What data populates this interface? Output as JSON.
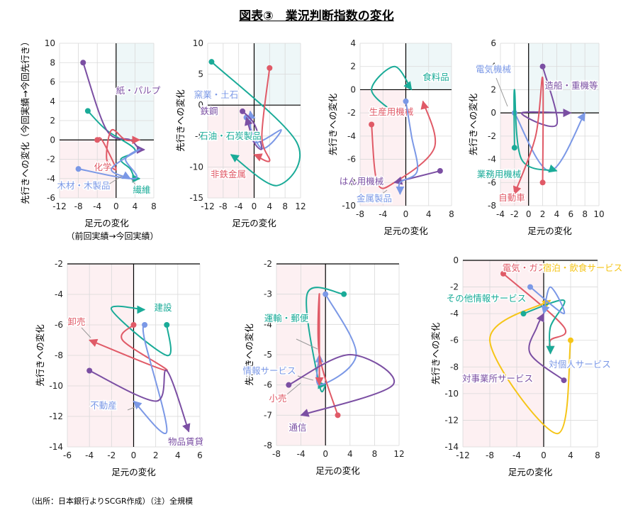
{
  "title": "図表③　業況判断指数の変化",
  "source": "（出所：日本銀行よりSCGR作成）（注）全規模",
  "colors": {
    "teal": "#1aab98",
    "purple": "#7b4fa3",
    "red": "#e05a67",
    "blue": "#7b98e6",
    "yellow": "#f5c518",
    "axis": "#000000",
    "grid": "#d9d9d9"
  },
  "chart_data": [
    {
      "type": "line",
      "xlabel": "足元の変化",
      "ylabel": "先行きへの変化（今回実績→今回先行き）",
      "note": "（前回実績→今回実績）",
      "xlim": [
        -12,
        8
      ],
      "ylim": [
        -6,
        10
      ],
      "xticks": [
        -12,
        -8,
        -4,
        0,
        4,
        8
      ],
      "yticks": [
        -6,
        -4,
        -2,
        0,
        2,
        4,
        6,
        8,
        10
      ],
      "series": [
        {
          "name": "繊維",
          "color": "teal",
          "points": [
            [
              -6,
              3
            ],
            [
              -2,
              1
            ],
            [
              4,
              -1
            ],
            [
              1,
              -2
            ],
            [
              3,
              -3
            ],
            [
              4,
              -4
            ],
            [
              5,
              -4
            ]
          ]
        },
        {
          "name": "紙・パルプ",
          "color": "purple",
          "points": [
            [
              -7,
              8
            ],
            [
              -2,
              1
            ],
            [
              3,
              0
            ],
            [
              5,
              -1
            ],
            [
              6,
              -1
            ]
          ]
        },
        {
          "name": "化学",
          "color": "red",
          "points": [
            [
              -4,
              0
            ],
            [
              -3,
              0
            ],
            [
              0,
              -3
            ],
            [
              -2,
              -2
            ],
            [
              -1,
              1
            ],
            [
              2,
              0
            ],
            [
              5,
              0
            ]
          ]
        },
        {
          "name": "木材・木製品",
          "color": "blue",
          "points": [
            [
              -8,
              -3
            ],
            [
              4,
              -4
            ],
            [
              2,
              -2
            ],
            [
              5,
              -1
            ],
            [
              -1,
              -3
            ],
            [
              3,
              -4
            ]
          ]
        }
      ]
    },
    {
      "type": "line",
      "xlabel": "足元の変化",
      "ylabel": "先行きへの変化",
      "xlim": [
        -12,
        12
      ],
      "ylim": [
        -15,
        10
      ],
      "xticks": [
        -12,
        -8,
        -4,
        0,
        4,
        8,
        12
      ],
      "yticks": [
        -15,
        -10,
        -5,
        0,
        5,
        10
      ],
      "series": [
        {
          "name": "窯業・土石",
          "color": "blue",
          "points": [
            [
              -2,
              -2
            ],
            [
              2,
              -7
            ],
            [
              7,
              -4
            ],
            [
              0,
              -6
            ],
            [
              -1,
              -1
            ]
          ]
        },
        {
          "name": "鉄鋼",
          "color": "purple",
          "points": [
            [
              -3,
              -1
            ],
            [
              0,
              -3
            ],
            [
              2,
              -7
            ],
            [
              0,
              -6
            ],
            [
              -2,
              -2
            ]
          ]
        },
        {
          "name": "石油・石炭製品",
          "color": "teal",
          "points": [
            [
              -11,
              7
            ],
            [
              11,
              -6
            ],
            [
              6,
              -13
            ],
            [
              -6,
              -8
            ]
          ]
        },
        {
          "name": "非鉄金属",
          "color": "red",
          "points": [
            [
              4,
              6
            ],
            [
              2,
              -5
            ],
            [
              4,
              -9
            ],
            [
              0,
              -8
            ]
          ]
        }
      ]
    },
    {
      "type": "line",
      "xlabel": "足元の変化",
      "ylabel": "先行きへの変化",
      "xlim": [
        -8,
        8
      ],
      "ylim": [
        -10,
        4
      ],
      "xticks": [
        -8,
        -4,
        0,
        4,
        8
      ],
      "yticks": [
        -10,
        -8,
        -6,
        -4,
        -2,
        0,
        2,
        4
      ],
      "series": [
        {
          "name": "食料品",
          "color": "teal",
          "points": [
            [
              -2,
              -2
            ],
            [
              -6,
              0
            ],
            [
              -2,
              2
            ],
            [
              1,
              0
            ]
          ]
        },
        {
          "name": "生産用機械",
          "color": "red",
          "points": [
            [
              -6,
              -3
            ],
            [
              -5,
              -8
            ],
            [
              -2,
              -8
            ],
            [
              5,
              -5
            ],
            [
              3,
              -1
            ]
          ]
        },
        {
          "name": "はん用機械",
          "color": "purple",
          "points": [
            [
              6,
              -7
            ],
            [
              -2,
              -8
            ]
          ]
        },
        {
          "name": "金属製品",
          "color": "blue",
          "points": [
            [
              0,
              -1
            ],
            [
              1,
              -4
            ],
            [
              2,
              -7
            ],
            [
              -1,
              -8
            ],
            [
              -1,
              -9
            ]
          ]
        }
      ]
    },
    {
      "type": "line",
      "xlabel": "足元の変化",
      "ylabel": "先行きへの変化",
      "xlim": [
        -4,
        10
      ],
      "ylim": [
        -8,
        6
      ],
      "xticks": [
        -4,
        -2,
        0,
        2,
        4,
        6,
        8,
        10
      ],
      "yticks": [
        -8,
        -6,
        -4,
        -2,
        0,
        2,
        4,
        6
      ],
      "series": [
        {
          "name": "電気機械",
          "color": "blue",
          "points": [
            [
              -2,
              0
            ],
            [
              3,
              -5
            ],
            [
              8,
              0
            ]
          ]
        },
        {
          "name": "造船・重機等",
          "color": "purple",
          "points": [
            [
              2,
              4
            ],
            [
              4,
              -1
            ],
            [
              -1,
              0
            ],
            [
              6,
              0
            ]
          ]
        },
        {
          "name": "業務用機械",
          "color": "teal",
          "points": [
            [
              -2,
              -3
            ],
            [
              -2,
              2
            ],
            [
              -1,
              -4
            ],
            [
              4,
              -5
            ]
          ]
        },
        {
          "name": "自動車",
          "color": "red",
          "points": [
            [
              2,
              -6
            ],
            [
              2,
              3
            ],
            [
              1,
              -2
            ],
            [
              -2,
              -7
            ]
          ]
        }
      ]
    },
    {
      "type": "line",
      "xlabel": "足元の変化",
      "ylabel": "先行きへの変化",
      "xlim": [
        -6,
        6
      ],
      "ylim": [
        -14,
        -2
      ],
      "xticks": [
        -6,
        -4,
        -2,
        0,
        2,
        4,
        6
      ],
      "yticks": [
        -14,
        -12,
        -10,
        -8,
        -6,
        -4,
        -2
      ],
      "series": [
        {
          "name": "建設",
          "color": "teal",
          "points": [
            [
              3,
              -6
            ],
            [
              3,
              -8
            ],
            [
              -2,
              -5
            ],
            [
              1,
              -5
            ]
          ]
        },
        {
          "name": "卸売",
          "color": "red",
          "points": [
            [
              0,
              -6
            ],
            [
              -1,
              -7
            ],
            [
              3,
              -9
            ],
            [
              -4,
              -7
            ]
          ]
        },
        {
          "name": "不動産",
          "color": "blue",
          "points": [
            [
              1,
              -6
            ],
            [
              1,
              -7
            ],
            [
              3,
              -13
            ],
            [
              0,
              -11
            ]
          ]
        },
        {
          "name": "物品賃貸",
          "color": "purple",
          "points": [
            [
              -4,
              -9
            ],
            [
              2,
              -11
            ],
            [
              3,
              -9
            ],
            [
              5,
              -13
            ]
          ]
        }
      ]
    },
    {
      "type": "line",
      "xlabel": "足元の変化",
      "ylabel": "先行きへの変化",
      "xlim": [
        -8,
        12
      ],
      "ylim": [
        -8,
        -2
      ],
      "xticks": [
        -8,
        -4,
        0,
        4,
        8,
        12
      ],
      "yticks": [
        -8,
        -7,
        -6,
        -5,
        -4,
        -3,
        -2
      ],
      "series": [
        {
          "name": "運輸・郵便",
          "color": "teal",
          "points": [
            [
              3,
              -3
            ],
            [
              -3,
              -3
            ],
            [
              -1,
              -6
            ],
            [
              0,
              -6
            ]
          ]
        },
        {
          "name": "情報サービス",
          "color": "blue",
          "points": [
            [
              0,
              -3
            ],
            [
              5,
              -5
            ],
            [
              -1,
              -6
            ],
            [
              -1,
              -5
            ]
          ]
        },
        {
          "name": "小売",
          "color": "red",
          "points": [
            [
              2,
              -7
            ],
            [
              -1,
              -5
            ],
            [
              -1,
              -3
            ],
            [
              -1,
              -6
            ]
          ]
        },
        {
          "name": "通信",
          "color": "purple",
          "points": [
            [
              -6,
              -6
            ],
            [
              4,
              -5
            ],
            [
              11,
              -6
            ],
            [
              -4,
              -7
            ]
          ]
        }
      ]
    },
    {
      "type": "line",
      "xlabel": "足元の変化",
      "ylabel": "先行きへの変化",
      "xlim": [
        -12,
        8
      ],
      "ylim": [
        -14,
        0
      ],
      "xticks": [
        -12,
        -8,
        -4,
        0,
        4,
        8
      ],
      "yticks": [
        -14,
        -12,
        -10,
        -8,
        -6,
        -4,
        -2,
        0
      ],
      "series": [
        {
          "name": "電気・ガス",
          "color": "red",
          "points": [
            [
              -6,
              -1
            ],
            [
              3,
              -5
            ],
            [
              1,
              -6
            ],
            [
              1,
              -7
            ]
          ]
        },
        {
          "name": "宿泊・飲食サービス",
          "color": "yellow",
          "points": [
            [
              4,
              -6
            ],
            [
              2,
              -13
            ],
            [
              -8,
              -6
            ],
            [
              1,
              -3
            ]
          ]
        },
        {
          "name": "その他情報サービス",
          "color": "teal",
          "points": [
            [
              -3,
              -4
            ],
            [
              3,
              -3
            ],
            [
              1,
              -5
            ],
            [
              1,
              -7
            ]
          ]
        },
        {
          "name": "対個人サービス",
          "color": "blue",
          "points": [
            [
              -2,
              -2
            ],
            [
              3,
              -4
            ],
            [
              1,
              -2
            ],
            [
              0,
              -4
            ]
          ]
        },
        {
          "name": "対事業所サービス",
          "color": "purple",
          "points": [
            [
              3,
              -9
            ],
            [
              -2,
              -7
            ],
            [
              -1,
              -5
            ],
            [
              0,
              -4
            ]
          ]
        }
      ]
    }
  ]
}
